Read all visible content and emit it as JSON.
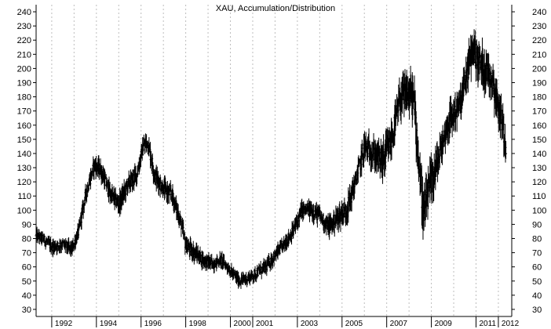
{
  "chart_data": {
    "type": "ohlc",
    "title": "XAU, Accumulation/Distribution",
    "xlabel": "",
    "ylabel": "",
    "ylim": [
      25,
      245
    ],
    "yticks": [
      30,
      40,
      50,
      60,
      70,
      80,
      90,
      100,
      110,
      120,
      130,
      140,
      150,
      160,
      170,
      180,
      190,
      200,
      210,
      220,
      230,
      240
    ],
    "xlim": [
      1991.3,
      2012.6
    ],
    "year_labels": [
      {
        "year": 1992,
        "label": "1992"
      },
      {
        "year": 1994,
        "label": "1994"
      },
      {
        "year": 1996,
        "label": "1996"
      },
      {
        "year": 1998,
        "label": "1998"
      },
      {
        "year": 2000,
        "label": "2000"
      },
      {
        "year": 2001,
        "label": "2001"
      },
      {
        "year": 2003,
        "label": "2003"
      },
      {
        "year": 2005,
        "label": "2005"
      },
      {
        "year": 2007,
        "label": "2007"
      },
      {
        "year": 2009,
        "label": "2009"
      },
      {
        "year": 2011,
        "label": "2011"
      },
      {
        "year": 2012,
        "label": "2012"
      }
    ],
    "grid": {
      "vertical": true,
      "horizontal": false,
      "style": "dotted"
    },
    "y_axis_sides": [
      "left",
      "right"
    ],
    "colors": {
      "bars": "#000000",
      "grid": "#bdbdbd",
      "background": "#ffffff"
    },
    "trend": [
      [
        1991.3,
        82
      ],
      [
        1991.6,
        80
      ],
      [
        1992.0,
        74
      ],
      [
        1992.5,
        76
      ],
      [
        1992.9,
        72
      ],
      [
        1993.2,
        85
      ],
      [
        1993.5,
        110
      ],
      [
        1993.9,
        132
      ],
      [
        1994.2,
        128
      ],
      [
        1994.6,
        112
      ],
      [
        1995.0,
        104
      ],
      [
        1995.4,
        118
      ],
      [
        1995.8,
        125
      ],
      [
        1996.1,
        145
      ],
      [
        1996.3,
        148
      ],
      [
        1996.6,
        125
      ],
      [
        1997.0,
        115
      ],
      [
        1997.4,
        110
      ],
      [
        1997.8,
        90
      ],
      [
        1998.0,
        75
      ],
      [
        1998.4,
        70
      ],
      [
        1998.8,
        65
      ],
      [
        1999.2,
        62
      ],
      [
        1999.6,
        65
      ],
      [
        2000.0,
        57
      ],
      [
        2000.4,
        50
      ],
      [
        2000.8,
        52
      ],
      [
        2001.2,
        56
      ],
      [
        2001.6,
        60
      ],
      [
        2002.0,
        68
      ],
      [
        2002.4,
        76
      ],
      [
        2002.8,
        85
      ],
      [
        2003.2,
        100
      ],
      [
        2003.6,
        100
      ],
      [
        2004.0,
        96
      ],
      [
        2004.4,
        88
      ],
      [
        2004.8,
        95
      ],
      [
        2005.2,
        100
      ],
      [
        2005.6,
        120
      ],
      [
        2006.0,
        145
      ],
      [
        2006.4,
        140
      ],
      [
        2006.8,
        135
      ],
      [
        2007.2,
        148
      ],
      [
        2007.6,
        178
      ],
      [
        2007.9,
        182
      ],
      [
        2008.2,
        180
      ],
      [
        2008.45,
        130
      ],
      [
        2008.65,
        95
      ],
      [
        2008.9,
        115
      ],
      [
        2009.3,
        135
      ],
      [
        2009.7,
        160
      ],
      [
        2010.0,
        168
      ],
      [
        2010.3,
        175
      ],
      [
        2010.6,
        198
      ],
      [
        2010.85,
        215
      ],
      [
        2011.1,
        205
      ],
      [
        2011.4,
        200
      ],
      [
        2011.7,
        195
      ],
      [
        2011.95,
        175
      ],
      [
        2012.2,
        160
      ],
      [
        2012.35,
        143
      ]
    ],
    "volatility": [
      [
        1991.3,
        6
      ],
      [
        1993.0,
        7
      ],
      [
        1994.0,
        9
      ],
      [
        1996.0,
        10
      ],
      [
        1998.0,
        9
      ],
      [
        2000.0,
        6
      ],
      [
        2002.0,
        7
      ],
      [
        2004.0,
        9
      ],
      [
        2006.0,
        13
      ],
      [
        2007.5,
        18
      ],
      [
        2008.6,
        22
      ],
      [
        2010.0,
        16
      ],
      [
        2011.5,
        20
      ],
      [
        2012.35,
        16
      ]
    ]
  }
}
